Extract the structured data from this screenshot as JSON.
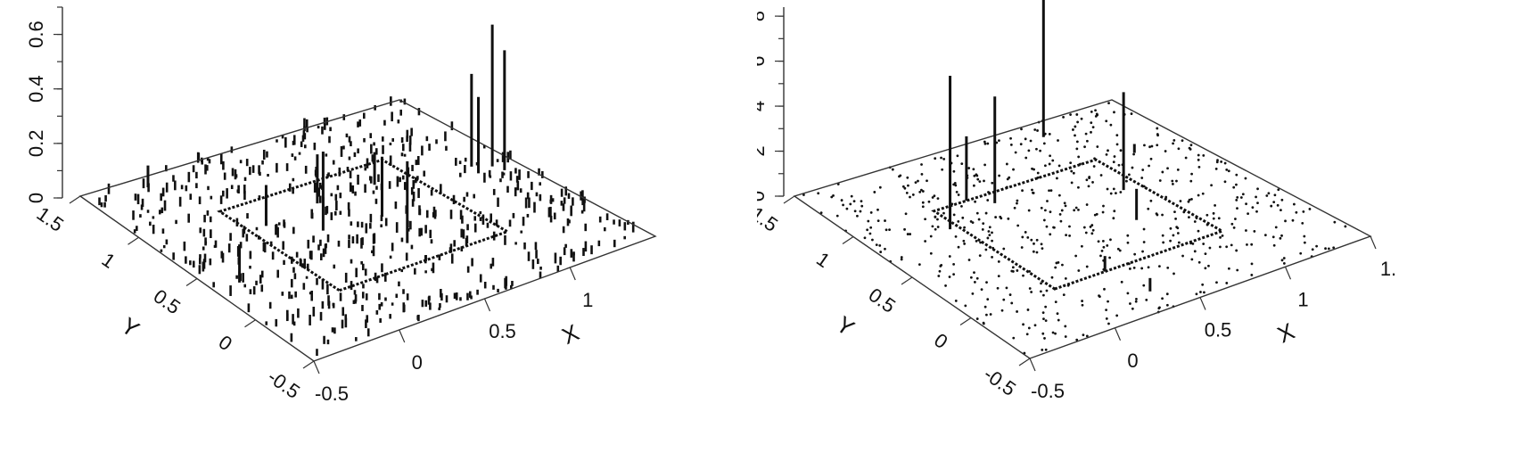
{
  "panels": [
    {
      "id": "left",
      "zticks": [
        "0",
        "0.2",
        "0.4",
        "0.6"
      ],
      "xticks": [
        "-0.5",
        "0",
        "0.5",
        "1"
      ],
      "yticks": [
        "-0.5",
        "0",
        "0.5",
        "1",
        "1.5"
      ],
      "xlabel": "X",
      "ylabel": "Y"
    },
    {
      "id": "right",
      "zticks": [
        "0",
        "2",
        "4",
        "6",
        "8"
      ],
      "xticks": [
        "-0.5",
        "0",
        "0.5",
        "1",
        "1."
      ],
      "yticks": [
        "-0.5",
        "0",
        "0.5",
        "1",
        "1.5"
      ],
      "xlabel": "X",
      "ylabel": "Y"
    }
  ],
  "chart_data": [
    {
      "type": "scatter",
      "xlabel": "X",
      "ylabel": "Y",
      "xlim": [
        -0.5,
        1.5
      ],
      "ylim": [
        -0.5,
        1.5
      ],
      "zlim": [
        0,
        0.7
      ],
      "inner_square": {
        "x": [
          0,
          1
        ],
        "y": [
          0,
          1
        ]
      },
      "n_background_points": 600,
      "spikes": [
        {
          "x": 1.38,
          "y": 0.62,
          "z": 0.52
        },
        {
          "x": 1.4,
          "y": 0.55,
          "z": 0.44
        },
        {
          "x": 1.3,
          "y": 0.68,
          "z": 0.34
        },
        {
          "x": 1.28,
          "y": 0.6,
          "z": 0.28
        },
        {
          "x": 0.3,
          "y": 0.55,
          "z": 0.29
        },
        {
          "x": 0.55,
          "y": 0.2,
          "z": 0.3
        },
        {
          "x": 0.62,
          "y": 0.5,
          "z": 0.22
        },
        {
          "x": -0.35,
          "y": 0.35,
          "z": 0.14
        },
        {
          "x": -0.15,
          "y": 1.4,
          "z": 0.08
        },
        {
          "x": 0.1,
          "y": 0.75,
          "z": 0.15
        },
        {
          "x": 0.8,
          "y": 0.8,
          "z": 0.12
        },
        {
          "x": 0.45,
          "y": 0.8,
          "z": 0.18
        }
      ]
    },
    {
      "type": "scatter",
      "xlabel": "X",
      "ylabel": "Y",
      "xlim": [
        -0.5,
        1.5
      ],
      "ylim": [
        -0.5,
        1.5
      ],
      "zlim": [
        0,
        8.5
      ],
      "inner_square": {
        "x": [
          0,
          1
        ],
        "y": [
          0,
          1
        ]
      },
      "n_background_points": 600,
      "spikes": [
        {
          "x": 0.95,
          "y": 1.35,
          "z": 7.6
        },
        {
          "x": -0.05,
          "y": 0.8,
          "z": 6.9
        },
        {
          "x": 0.3,
          "y": 0.9,
          "z": 4.8
        },
        {
          "x": 0.9,
          "y": 0.65,
          "z": 4.4
        },
        {
          "x": 0.2,
          "y": 1.0,
          "z": 2.9
        },
        {
          "x": 0.75,
          "y": 0.35,
          "z": 1.4
        },
        {
          "x": 0.3,
          "y": 0.0,
          "z": 0.7
        },
        {
          "x": 0.35,
          "y": -0.3,
          "z": 0.6
        },
        {
          "x": 1.2,
          "y": 0.95,
          "z": 0.4
        }
      ]
    }
  ]
}
